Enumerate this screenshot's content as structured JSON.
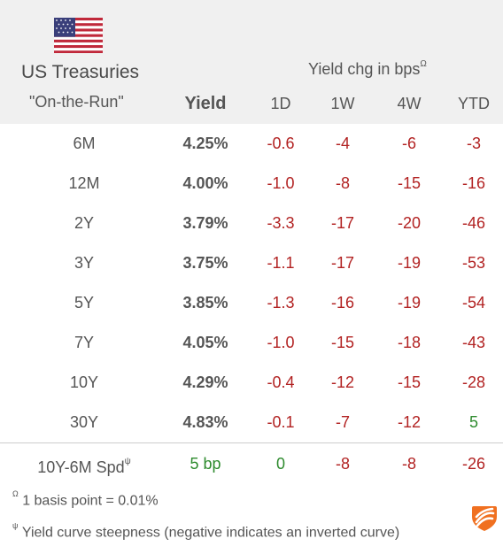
{
  "header": {
    "title": "US Treasuries",
    "subtitle": "\"On-the-Run\"",
    "change_title": "Yield chg in bps",
    "change_title_marker": "Ω",
    "columns": {
      "yield": "Yield",
      "d1": "1D",
      "w1": "1W",
      "w4": "4W",
      "ytd": "YTD"
    }
  },
  "rows": [
    {
      "tenor": "6M",
      "yield": "4.25%",
      "d1": "-0.6",
      "w1": "-4",
      "w4": "-6",
      "ytd": "-3"
    },
    {
      "tenor": "12M",
      "yield": "4.00%",
      "d1": "-1.0",
      "w1": "-8",
      "w4": "-15",
      "ytd": "-16"
    },
    {
      "tenor": "2Y",
      "yield": "3.79%",
      "d1": "-3.3",
      "w1": "-17",
      "w4": "-20",
      "ytd": "-46"
    },
    {
      "tenor": "3Y",
      "yield": "3.75%",
      "d1": "-1.1",
      "w1": "-17",
      "w4": "-19",
      "ytd": "-53"
    },
    {
      "tenor": "5Y",
      "yield": "3.85%",
      "d1": "-1.3",
      "w1": "-16",
      "w4": "-19",
      "ytd": "-54"
    },
    {
      "tenor": "7Y",
      "yield": "4.05%",
      "d1": "-1.0",
      "w1": "-15",
      "w4": "-18",
      "ytd": "-43"
    },
    {
      "tenor": "10Y",
      "yield": "4.29%",
      "d1": "-0.4",
      "w1": "-12",
      "w4": "-15",
      "ytd": "-28"
    },
    {
      "tenor": "30Y",
      "yield": "4.83%",
      "d1": "-0.1",
      "w1": "-7",
      "w4": "-12",
      "ytd": "5"
    }
  ],
  "spread": {
    "label": "10Y-6M Spd",
    "label_marker": "ψ",
    "yield": "5 bp",
    "d1": "0",
    "w1": "-8",
    "w4": "-8",
    "ytd": "-26"
  },
  "notes": {
    "bp_marker": "Ω",
    "bp_text": "1 basis point = 0.01%",
    "curve_marker": "ψ",
    "curve_text": "Yield curve steepness (negative indicates an inverted curve)"
  },
  "colors": {
    "negative": "#b22222",
    "positive": "#2e8b2e",
    "header_bg": "#f0f0f0",
    "logo": "#f07020"
  },
  "icons": {
    "flag": "us-flag-icon",
    "logo": "brand-logo-icon"
  }
}
